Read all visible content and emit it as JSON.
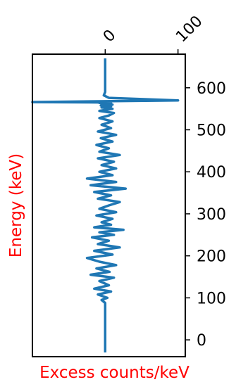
{
  "chart_data": {
    "type": "line",
    "orientation": "vertical-trace",
    "xlabel": "Excess counts/keV",
    "ylabel": "Energy (keV)",
    "axis_label_color": "#ff0000",
    "line_color": "#1f77b4",
    "x_ticks": [
      0,
      100
    ],
    "x_tick_labels": [
      "0",
      "100"
    ],
    "x_tick_position": "top",
    "x_tick_label_rotation": -45,
    "y_ticks": [
      0,
      100,
      200,
      300,
      400,
      500,
      600
    ],
    "y_tick_labels": [
      "0",
      "100",
      "200",
      "300",
      "400",
      "500",
      "600"
    ],
    "y_tick_position": "right",
    "xlim": [
      -100,
      110
    ],
    "ylim": [
      -40,
      680
    ],
    "grid": false,
    "series": [
      {
        "x": [
          0,
          0,
          0,
          0,
          0,
          0,
          -5,
          3,
          -10,
          8,
          -15,
          5,
          -8,
          12,
          -20,
          6,
          -12,
          15,
          -8,
          -25,
          10,
          -15,
          20,
          -10,
          5,
          -18,
          12,
          -8,
          25,
          -15,
          8,
          -5,
          10,
          -12,
          15,
          -8,
          5,
          20,
          -10,
          8,
          -15,
          28,
          -20,
          15,
          -25,
          10,
          -8,
          15,
          -5,
          12,
          -10,
          20,
          -8,
          5,
          -12,
          10,
          -6,
          15,
          -10,
          8,
          -5,
          10,
          -8,
          5,
          12,
          -8,
          10,
          -5,
          8,
          -6,
          10,
          -5,
          5,
          -8,
          8,
          -100,
          100,
          5,
          -2,
          0,
          0,
          0,
          0,
          0
        ],
        "y": [
          -30,
          0,
          20,
          40,
          60,
          88,
          95,
          100,
          108,
          115,
          122,
          130,
          140,
          148,
          155,
          162,
          170,
          178,
          186,
          195,
          203,
          212,
          220,
          228,
          236,
          244,
          250,
          256,
          262,
          268,
          274,
          280,
          288,
          296,
          304,
          312,
          320,
          328,
          336,
          344,
          352,
          360,
          368,
          376,
          384,
          392,
          400,
          408,
          416,
          424,
          432,
          440,
          448,
          456,
          464,
          472,
          480,
          488,
          496,
          504,
          512,
          520,
          528,
          534,
          540,
          545,
          550,
          553,
          556,
          558,
          560,
          562,
          563,
          564,
          565,
          566,
          570,
          576,
          582,
          590,
          610,
          630,
          650,
          670
        ]
      }
    ]
  }
}
